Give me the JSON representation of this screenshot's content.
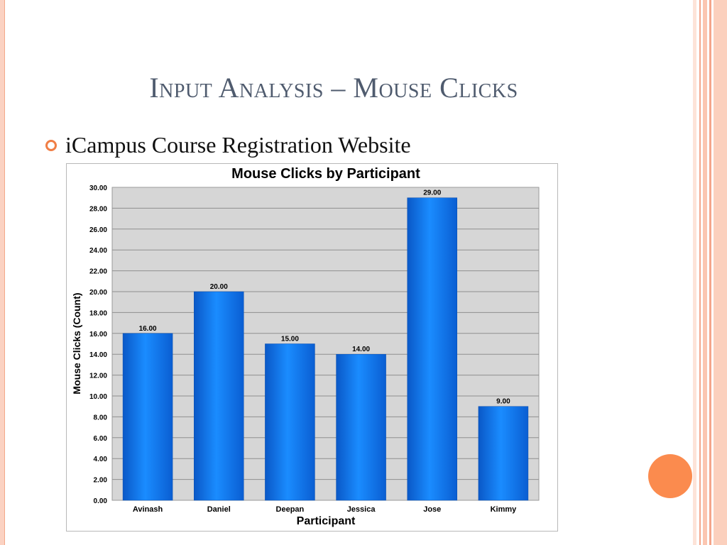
{
  "slide": {
    "title": "Input Analysis – Mouse Clicks",
    "bullet": "iCampus Course Registration Website"
  },
  "colors": {
    "accent": "#f07e45",
    "bar": "#0a6fe6",
    "plot_background": "#d6d6d6",
    "decor_orange": "#fb8b4e"
  },
  "chart_data": {
    "type": "bar",
    "title": "Mouse Clicks by Participant",
    "xlabel": "Participant",
    "ylabel": "Mouse Clicks (Count)",
    "categories": [
      "Avinash",
      "Daniel",
      "Deepan",
      "Jessica",
      "Jose",
      "Kimmy"
    ],
    "values": [
      16,
      20,
      15,
      14,
      29,
      9
    ],
    "ylim": [
      0,
      30
    ],
    "ytick_step": 2,
    "grid": true,
    "data_labels": true,
    "legend": "none"
  }
}
